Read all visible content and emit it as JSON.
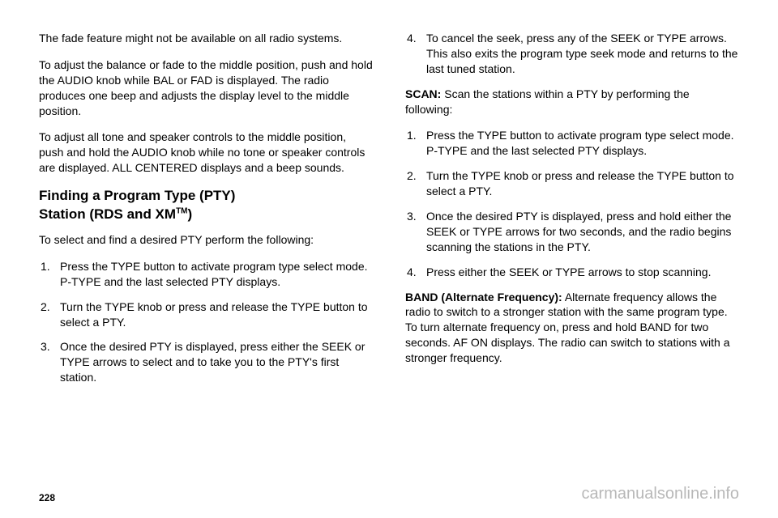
{
  "left": {
    "p1": "The fade feature might not be available on all radio systems.",
    "p2": "To adjust the balance or fade to the middle position, push and hold the AUDIO knob while BAL or FAD is displayed. The radio produces one beep and adjusts the display level to the middle position.",
    "p3": "To adjust all tone and speaker controls to the middle position, push and hold the AUDIO knob while no tone or speaker controls are displayed. ALL CENTERED displays and a beep sounds.",
    "heading_line1": "Finding a Program Type (PTY)",
    "heading_line2_pre": "Station (RDS and XM",
    "heading_tm": "TM",
    "heading_line2_post": ")",
    "p4": "To select and find a desired PTY perform the following:",
    "list1": {
      "item1": "Press the TYPE button to activate program type select mode. P-TYPE and the last selected PTY displays.",
      "item2": "Turn the TYPE knob or press and release the TYPE button to select a PTY.",
      "item3": "Once the desired PTY is displayed, press either the SEEK or TYPE arrows to select and to take you to the PTY's first station."
    }
  },
  "right": {
    "list1": {
      "item4": "To cancel the seek, press any of the SEEK or TYPE arrows. This also exits the program type seek mode and returns to the last tuned station."
    },
    "scan_label": "SCAN:",
    "scan_text": "  Scan the stations within a PTY by performing the following:",
    "list2": {
      "item1": "Press the TYPE button to activate program type select mode. P-TYPE and the last selected PTY displays.",
      "item2": "Turn the TYPE knob or press and release the TYPE button to select a PTY.",
      "item3": "Once the desired PTY is displayed, press and hold either the SEEK or TYPE arrows for two seconds, and the radio begins scanning the stations in the PTY.",
      "item4": "Press either the SEEK or TYPE arrows to stop scanning."
    },
    "band_label": "BAND (Alternate Frequency):",
    "band_text": "  Alternate frequency allows the radio to switch to a stronger station with the same program type. To turn alternate frequency on, press and hold BAND for two seconds. AF ON displays. The radio can switch to stations with a stronger frequency."
  },
  "footer": {
    "page": "228",
    "watermark": "carmanualsonline.info"
  }
}
